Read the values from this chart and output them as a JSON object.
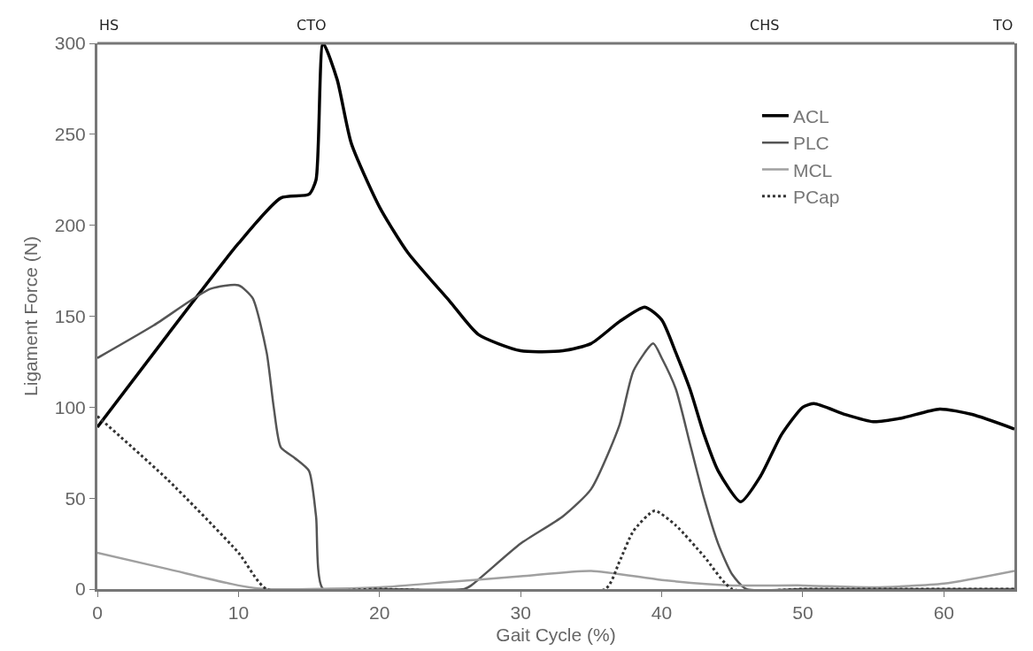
{
  "chart_data": {
    "type": "line",
    "xlabel": "Gait Cycle (%)",
    "ylabel": "Ligament Force (N)",
    "xlim": [
      0,
      65
    ],
    "xticks": [
      0,
      10,
      20,
      30,
      40,
      50,
      60
    ],
    "ylim": [
      0,
      300
    ],
    "yticks": [
      0,
      50,
      100,
      150,
      200,
      250,
      300
    ],
    "annotations": [
      "HS",
      "CTO",
      "CHS",
      "TO"
    ],
    "grid": false,
    "legend": "top right",
    "series": [
      {
        "name": "ACL",
        "color": "#000000",
        "line_style": "solid",
        "x": [
          0,
          5,
          10,
          13,
          15,
          15.5,
          16,
          17,
          18,
          20,
          22,
          25,
          27,
          30,
          33,
          35,
          37,
          38.8,
          40,
          41,
          42,
          43,
          44,
          45.6,
          47,
          48.5,
          50,
          50.8,
          53,
          55,
          57,
          59.7,
          62,
          65
        ],
        "values": [
          89,
          140,
          190,
          215,
          217,
          225,
          300,
          280,
          245,
          210,
          185,
          158,
          140,
          131,
          131,
          135,
          147,
          155,
          148,
          130,
          110,
          85,
          65,
          48,
          62,
          85,
          100,
          102,
          96,
          92,
          94,
          99,
          96,
          88
        ]
      },
      {
        "name": "PLC",
        "color": "#555555",
        "line_style": "solid",
        "x": [
          0,
          4,
          8,
          10,
          11,
          12,
          12.5,
          13,
          14,
          15,
          15.5,
          16,
          20,
          26,
          26.5,
          30,
          33,
          35,
          37,
          38,
          39.4,
          40,
          41,
          42,
          43,
          44,
          45,
          46,
          50,
          65
        ],
        "values": [
          127,
          145,
          165,
          167,
          160,
          130,
          100,
          78,
          72,
          65,
          40,
          0,
          0,
          0,
          2,
          25,
          40,
          55,
          90,
          120,
          135,
          127,
          110,
          80,
          50,
          25,
          8,
          0,
          0,
          0
        ]
      },
      {
        "name": "MCL",
        "color": "#a0a0a0",
        "line_style": "solid",
        "x": [
          0,
          5,
          10,
          12,
          20,
          25,
          30,
          35,
          40,
          45,
          50,
          55,
          60,
          65
        ],
        "values": [
          20,
          11,
          2,
          0,
          1,
          4,
          7,
          10,
          5,
          2,
          2,
          1,
          3,
          10
        ]
      },
      {
        "name": "PCap",
        "color": "#333333",
        "line_style": "dotted",
        "x": [
          0,
          5,
          10,
          12,
          20,
          36,
          37,
          38,
          39.5,
          41,
          43,
          45,
          50,
          65
        ],
        "values": [
          95,
          60,
          20,
          0,
          0,
          0,
          15,
          32,
          43,
          35,
          18,
          0,
          0,
          0
        ]
      }
    ]
  }
}
